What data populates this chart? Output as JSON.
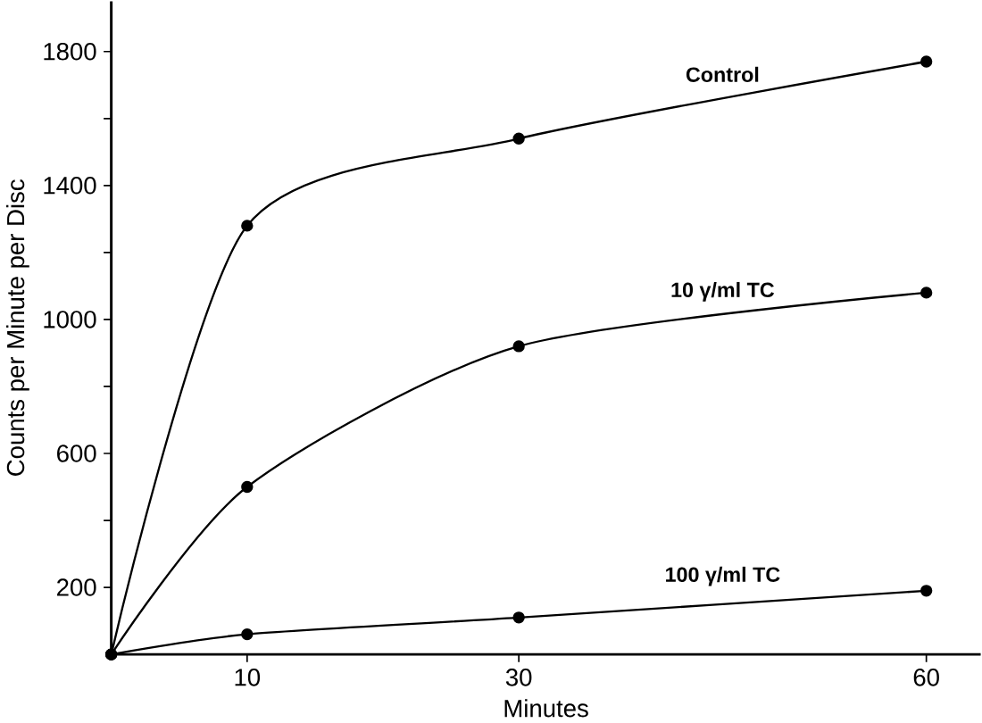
{
  "chart_data": {
    "type": "line",
    "xlabel": "Minutes",
    "ylabel": "Counts per Minute per Disc",
    "x": [
      0,
      10,
      30,
      60
    ],
    "series": [
      {
        "name": "Control",
        "color": "#000000",
        "values": [
          0,
          1280,
          1540,
          1770
        ]
      },
      {
        "name": "10 γ/ml TC",
        "color": "#000000",
        "values": [
          0,
          500,
          920,
          1080
        ]
      },
      {
        "name": "100 γ/ml TC",
        "color": "#000000",
        "values": [
          0,
          60,
          110,
          190
        ]
      }
    ],
    "xlim": [
      0,
      64
    ],
    "ylim": [
      0,
      1950
    ],
    "xticks": [
      10,
      30,
      60
    ],
    "yticks": [
      200,
      {
        "value": 400,
        "label": null
      },
      600,
      {
        "value": 800,
        "label": null
      },
      1000,
      {
        "value": 1200,
        "label": null
      },
      1400,
      {
        "value": 1600,
        "label": null
      },
      1800
    ],
    "marker": "circle",
    "line_style": "solid"
  }
}
